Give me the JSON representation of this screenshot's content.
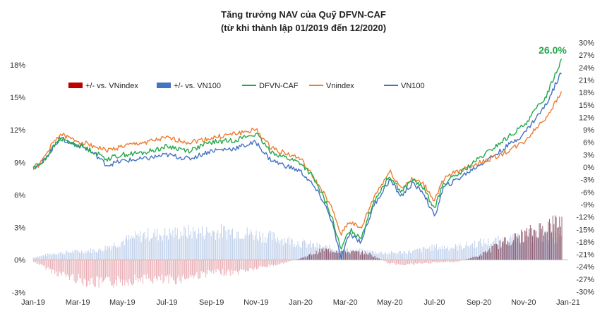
{
  "chart_data": {
    "type": "line",
    "title": "Tăng trưởng NAV của Quỹ DFVN-CAF",
    "subtitle": "(từ khi thành lập 01/2019 đến 12/2020)",
    "x_ticks": [
      "Jan-19",
      "Mar-19",
      "May-19",
      "Jul-19",
      "Sep-19",
      "Nov-19",
      "Jan-20",
      "Mar-20",
      "May-20",
      "Jul-20",
      "Sep-20",
      "Nov-20",
      "Jan-21"
    ],
    "x_range_months": [
      0,
      24
    ],
    "left_axis": {
      "ticks": [
        "18%",
        "15%",
        "12%",
        "9%",
        "6%",
        "3%",
        "0%",
        "-3%"
      ],
      "ylim": [
        -3,
        18.5
      ]
    },
    "right_axis": {
      "ticks": [
        "30%",
        "27%",
        "24%",
        "21%",
        "18%",
        "15%",
        "12%",
        "9%",
        "6%",
        "3%",
        "0%",
        "-3%",
        "-6%",
        "-9%",
        "-12%",
        "-15%",
        "-18%",
        "-21%",
        "-24%",
        "-27%",
        "-30%"
      ],
      "ylim": [
        -30,
        30
      ]
    },
    "legend": [
      {
        "label": "+/- vs. VNindex",
        "kind": "bar",
        "color": "#c00000"
      },
      {
        "label": "+/- vs. VN100",
        "kind": "bar",
        "color": "#4472c4"
      },
      {
        "label": "DFVN-CAF",
        "kind": "line",
        "color": "#22a84a"
      },
      {
        "label": "Vnindex",
        "kind": "line",
        "color": "#ed7d31"
      },
      {
        "label": "VN100",
        "kind": "line",
        "color": "#4472c4"
      }
    ],
    "series_keypoints": {
      "DFVN-CAF": [
        [
          0,
          0
        ],
        [
          0.3,
          0.5
        ],
        [
          0.8,
          4
        ],
        [
          1.2,
          7
        ],
        [
          1.6,
          6
        ],
        [
          2.2,
          5
        ],
        [
          2.8,
          3.5
        ],
        [
          3.3,
          2
        ],
        [
          4,
          3
        ],
        [
          5,
          3.5
        ],
        [
          6,
          5
        ],
        [
          7,
          4
        ],
        [
          8,
          6
        ],
        [
          9,
          6.5
        ],
        [
          10,
          8
        ],
        [
          10.6,
          4
        ],
        [
          11,
          3
        ],
        [
          12,
          1
        ],
        [
          12.5,
          -2
        ],
        [
          13,
          -7
        ],
        [
          13.4,
          -12
        ],
        [
          13.8,
          -20
        ],
        [
          14.2,
          -15
        ],
        [
          14.7,
          -17
        ],
        [
          15.3,
          -8
        ],
        [
          16,
          -2
        ],
        [
          16.5,
          -6
        ],
        [
          17,
          -3
        ],
        [
          17.5,
          -5
        ],
        [
          18,
          -10
        ],
        [
          18.4,
          -4
        ],
        [
          19,
          -2
        ],
        [
          20,
          2
        ],
        [
          21,
          6
        ],
        [
          22,
          10
        ],
        [
          23,
          17
        ],
        [
          23.7,
          26
        ]
      ],
      "Vnindex": [
        [
          0,
          0
        ],
        [
          0.3,
          0.7
        ],
        [
          0.8,
          5
        ],
        [
          1.2,
          8
        ],
        [
          1.6,
          7
        ],
        [
          2.2,
          6
        ],
        [
          2.8,
          5
        ],
        [
          3.3,
          4
        ],
        [
          4,
          5
        ],
        [
          5,
          6
        ],
        [
          6,
          7
        ],
        [
          7,
          6
        ],
        [
          8,
          7
        ],
        [
          9,
          8
        ],
        [
          10,
          9
        ],
        [
          10.6,
          5
        ],
        [
          11,
          4
        ],
        [
          12,
          2
        ],
        [
          12.5,
          -2
        ],
        [
          13,
          -6
        ],
        [
          13.4,
          -10
        ],
        [
          13.8,
          -16
        ],
        [
          14.2,
          -13
        ],
        [
          14.7,
          -15
        ],
        [
          15.3,
          -7
        ],
        [
          16,
          -1
        ],
        [
          16.5,
          -5
        ],
        [
          17,
          -3
        ],
        [
          17.5,
          -4
        ],
        [
          18,
          -8
        ],
        [
          18.4,
          -3
        ],
        [
          19,
          -1
        ],
        [
          20,
          1
        ],
        [
          21,
          3
        ],
        [
          22,
          6
        ],
        [
          23,
          12
        ],
        [
          23.7,
          18
        ]
      ],
      "VN100": [
        [
          0,
          0
        ],
        [
          0.3,
          0.3
        ],
        [
          0.8,
          4
        ],
        [
          1.2,
          7
        ],
        [
          1.6,
          6
        ],
        [
          2.2,
          5
        ],
        [
          2.8,
          3
        ],
        [
          3.3,
          0.5
        ],
        [
          4,
          1.5
        ],
        [
          5,
          2
        ],
        [
          6,
          3
        ],
        [
          7,
          2
        ],
        [
          8,
          4
        ],
        [
          9,
          4.5
        ],
        [
          10,
          6
        ],
        [
          10.6,
          2
        ],
        [
          11,
          1
        ],
        [
          12,
          -1
        ],
        [
          12.5,
          -4
        ],
        [
          13,
          -8
        ],
        [
          13.4,
          -13
        ],
        [
          13.8,
          -22
        ],
        [
          14.2,
          -16
        ],
        [
          14.7,
          -18
        ],
        [
          15.3,
          -9
        ],
        [
          16,
          -3
        ],
        [
          16.5,
          -7
        ],
        [
          17,
          -4
        ],
        [
          17.5,
          -6
        ],
        [
          18,
          -12
        ],
        [
          18.4,
          -5
        ],
        [
          19,
          -3
        ],
        [
          20,
          0.5
        ],
        [
          21,
          4
        ],
        [
          22,
          8
        ],
        [
          23,
          15
        ],
        [
          23.7,
          23
        ]
      ]
    },
    "bar_envelopes": {
      "+/- vs. VN100": [
        [
          0,
          0.3
        ],
        [
          1,
          0.8
        ],
        [
          2,
          1.0
        ],
        [
          3,
          1.2
        ],
        [
          4,
          2.2
        ],
        [
          5,
          3.0
        ],
        [
          6,
          3.1
        ],
        [
          7,
          3.3
        ],
        [
          8,
          3.3
        ],
        [
          9,
          3.4
        ],
        [
          10,
          3.0
        ],
        [
          11,
          2.6
        ],
        [
          12,
          2.0
        ],
        [
          13,
          1.5
        ],
        [
          14,
          1.2
        ],
        [
          15,
          1.0
        ],
        [
          16,
          0.8
        ],
        [
          17,
          1.0
        ],
        [
          18,
          1.5
        ],
        [
          19,
          1.5
        ],
        [
          20,
          2.0
        ],
        [
          21,
          2.3
        ],
        [
          22,
          2.5
        ],
        [
          23,
          2.8
        ],
        [
          23.7,
          2.5
        ]
      ],
      "+/- vs. VNindex": [
        [
          0,
          -0.2
        ],
        [
          1,
          -1.5
        ],
        [
          2,
          -2.3
        ],
        [
          3,
          -2.8
        ],
        [
          4,
          -2.5
        ],
        [
          5,
          -2.2
        ],
        [
          6,
          -2.5
        ],
        [
          7,
          -2.0
        ],
        [
          8,
          -1.5
        ],
        [
          9,
          -1.5
        ],
        [
          10,
          -1.0
        ],
        [
          11,
          -0.5
        ],
        [
          12,
          0.2
        ],
        [
          13,
          1.2
        ],
        [
          14,
          1.0
        ],
        [
          15,
          0.8
        ],
        [
          16,
          -0.5
        ],
        [
          17,
          -0.5
        ],
        [
          18,
          -0.3
        ],
        [
          19,
          -0.2
        ],
        [
          20,
          0.5
        ],
        [
          21,
          2.0
        ],
        [
          22,
          3.0
        ],
        [
          23,
          4.0
        ],
        [
          23.7,
          4.7
        ]
      ]
    },
    "annotation": {
      "text": "26.0%",
      "color": "#22a84a"
    },
    "grid": false,
    "legend_position": "upper-left"
  }
}
